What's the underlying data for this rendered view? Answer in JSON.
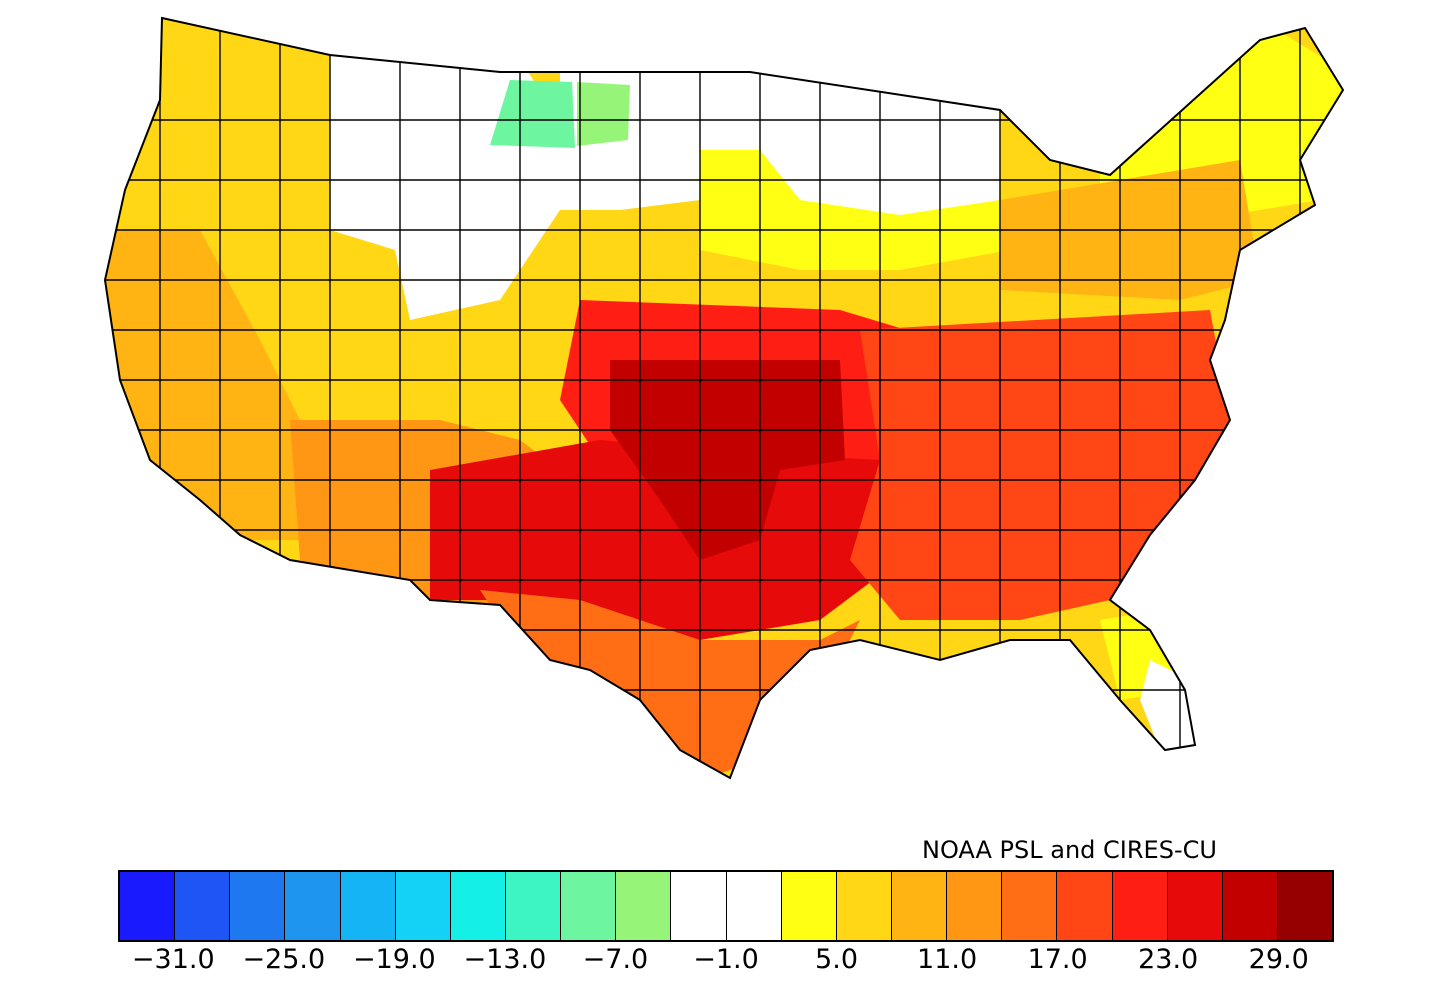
{
  "credit": "NOAA PSL and CIRES-CU",
  "legend": {
    "colors": [
      "#1a1aff",
      "#1e55f5",
      "#1e78f0",
      "#1e96f0",
      "#14b4f5",
      "#14d2f5",
      "#14f0e6",
      "#3cf5c3",
      "#6ef5a0",
      "#96f578",
      "#ffffff",
      "#ffffff",
      "#ffff14",
      "#ffd714",
      "#ffb414",
      "#ff9614",
      "#ff6e14",
      "#ff4614",
      "#ff1e14",
      "#e60a0a",
      "#c30000",
      "#960000"
    ],
    "tick_labels": [
      "−31.0",
      "−25.0",
      "−19.0",
      "−13.0",
      "−7.0",
      "−1.0",
      "5.0",
      "11.0",
      "17.0",
      "23.0",
      "29.0"
    ]
  },
  "map": {
    "regions": [
      {
        "name": "pacific-northwest",
        "color": "#ffd714"
      },
      {
        "name": "northern-rockies",
        "color": "#ffffff"
      },
      {
        "name": "north-dakota-west",
        "color": "#6ef5a0"
      },
      {
        "name": "north-dakota-east",
        "color": "#96f578"
      },
      {
        "name": "upper-midwest",
        "color": "#ffffff"
      },
      {
        "name": "great-lakes",
        "color": "#ffff14"
      },
      {
        "name": "new-england",
        "color": "#ffff14"
      },
      {
        "name": "mid-atlantic",
        "color": "#ffb414"
      },
      {
        "name": "california",
        "color": "#ffb414"
      },
      {
        "name": "great-basin",
        "color": "#ffd714"
      },
      {
        "name": "southwest",
        "color": "#ff9614"
      },
      {
        "name": "central-plains",
        "color": "#ff1e14"
      },
      {
        "name": "kansas-missouri-core",
        "color": "#c30000"
      },
      {
        "name": "southern-plains",
        "color": "#e60a0a"
      },
      {
        "name": "texas-gulf",
        "color": "#ff6e14"
      },
      {
        "name": "southeast",
        "color": "#ff4614"
      },
      {
        "name": "florida-peninsula",
        "color": "#ffff14"
      },
      {
        "name": "south-florida",
        "color": "#ffffff"
      }
    ]
  }
}
